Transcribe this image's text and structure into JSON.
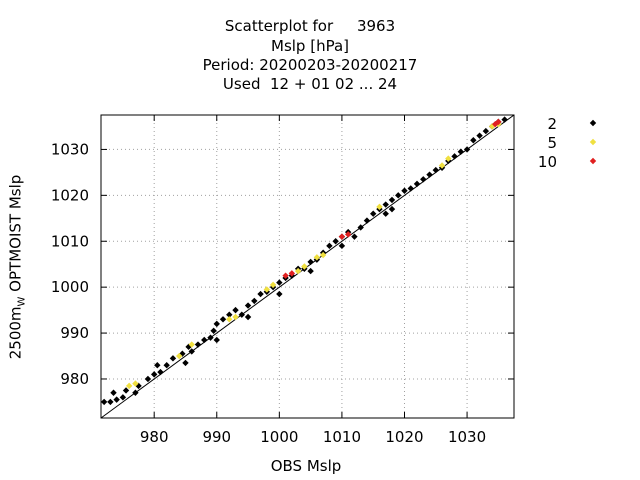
{
  "titles": [
    "Scatterplot for     3963",
    "Mslp [hPa]",
    "Period: 20200203-20200217",
    "Used  12 + 01 02 ... 24"
  ],
  "colors": {
    "black": "#000000",
    "yellow": "#f0e040",
    "red": "#e02020",
    "grid": "#a0a0a0"
  },
  "chart_data": {
    "type": "scatter",
    "title": "Scatterplot for     3963",
    "xlabel": "OBS Mslp",
    "ylabel": "2500m OPTMOIST Mslp",
    "ylabel_main": "2500m",
    "ylabel_sub": "W",
    "ylabel_rest": " OPTMOIST Mslp",
    "xlim": [
      971.5,
      1037.5
    ],
    "ylim": [
      971.5,
      1037.5
    ],
    "xticks": [
      980,
      990,
      1000,
      1010,
      1020,
      1030
    ],
    "yticks": [
      980,
      990,
      1000,
      1010,
      1020,
      1030
    ],
    "grid": true,
    "legend_position": "right",
    "diagonal_reference_line": true,
    "series": [
      {
        "name": "2",
        "color": "#000000",
        "points": [
          [
            972,
            975
          ],
          [
            973,
            975
          ],
          [
            974,
            975.5
          ],
          [
            975,
            976
          ],
          [
            973.5,
            977
          ],
          [
            975.5,
            977.5
          ],
          [
            977,
            977
          ],
          [
            977.5,
            978.5
          ],
          [
            979,
            980
          ],
          [
            980,
            981
          ],
          [
            981,
            981.5
          ],
          [
            980.5,
            983
          ],
          [
            982,
            983
          ],
          [
            983,
            984.5
          ],
          [
            984.5,
            985.5
          ],
          [
            985.5,
            987
          ],
          [
            986,
            986
          ],
          [
            987,
            987.5
          ],
          [
            988,
            988.5
          ],
          [
            989,
            989
          ],
          [
            989.5,
            990.5
          ],
          [
            990,
            992
          ],
          [
            991,
            993
          ],
          [
            992,
            994
          ],
          [
            993,
            995
          ],
          [
            994,
            994
          ],
          [
            995,
            996
          ],
          [
            996,
            997
          ],
          [
            997,
            998.5
          ],
          [
            998,
            999
          ],
          [
            999,
            1000
          ],
          [
            1000,
            1001
          ],
          [
            1001,
            1002
          ],
          [
            1002,
            1002.5
          ],
          [
            1003,
            1004
          ],
          [
            1004,
            1004
          ],
          [
            1005,
            1005.5
          ],
          [
            1006,
            1006
          ],
          [
            1007,
            1007.5
          ],
          [
            1008,
            1009
          ],
          [
            1009,
            1010
          ],
          [
            1010,
            1011
          ],
          [
            1011,
            1012
          ],
          [
            1012,
            1011
          ],
          [
            1013,
            1013
          ],
          [
            1014,
            1014.5
          ],
          [
            1015,
            1016
          ],
          [
            1016,
            1017
          ],
          [
            1017,
            1018
          ],
          [
            1018,
            1019
          ],
          [
            1019,
            1020
          ],
          [
            1020,
            1021
          ],
          [
            1021,
            1021.5
          ],
          [
            1022,
            1022.5
          ],
          [
            1023,
            1023.5
          ],
          [
            1024,
            1024.5
          ],
          [
            1025,
            1025.5
          ],
          [
            1026,
            1026
          ],
          [
            1027,
            1027.5
          ],
          [
            1028,
            1028.5
          ],
          [
            1029,
            1029.5
          ],
          [
            1030,
            1030
          ],
          [
            1031,
            1032
          ],
          [
            1032,
            1033
          ],
          [
            1033,
            1034
          ],
          [
            1034,
            1035
          ],
          [
            1035,
            1036
          ],
          [
            1036,
            1036.5
          ],
          [
            985,
            983.5
          ],
          [
            990,
            988.5
          ],
          [
            995,
            993.5
          ],
          [
            1000,
            998.5
          ],
          [
            1005,
            1003.5
          ],
          [
            1010,
            1009
          ],
          [
            1017,
            1016
          ],
          [
            1018,
            1017
          ]
        ]
      },
      {
        "name": "5",
        "color": "#f0e040",
        "points": [
          [
            976,
            978.5
          ],
          [
            977,
            979
          ],
          [
            984,
            985
          ],
          [
            986,
            987.5
          ],
          [
            992,
            993
          ],
          [
            993,
            993.5
          ],
          [
            998,
            999.5
          ],
          [
            999,
            1000.5
          ],
          [
            1003,
            1003.5
          ],
          [
            1004,
            1004.5
          ],
          [
            1006,
            1006.5
          ],
          [
            1007,
            1007
          ],
          [
            1016,
            1017.5
          ],
          [
            1026,
            1026.5
          ],
          [
            1027,
            1028
          ],
          [
            1034,
            1035
          ],
          [
            1035,
            1035.5
          ]
        ]
      },
      {
        "name": "10",
        "color": "#e02020",
        "points": [
          [
            1001,
            1002.5
          ],
          [
            1002,
            1003
          ],
          [
            1010,
            1011
          ],
          [
            1011,
            1011.5
          ],
          [
            1034.5,
            1035.5
          ],
          [
            1035,
            1036
          ]
        ]
      }
    ]
  }
}
